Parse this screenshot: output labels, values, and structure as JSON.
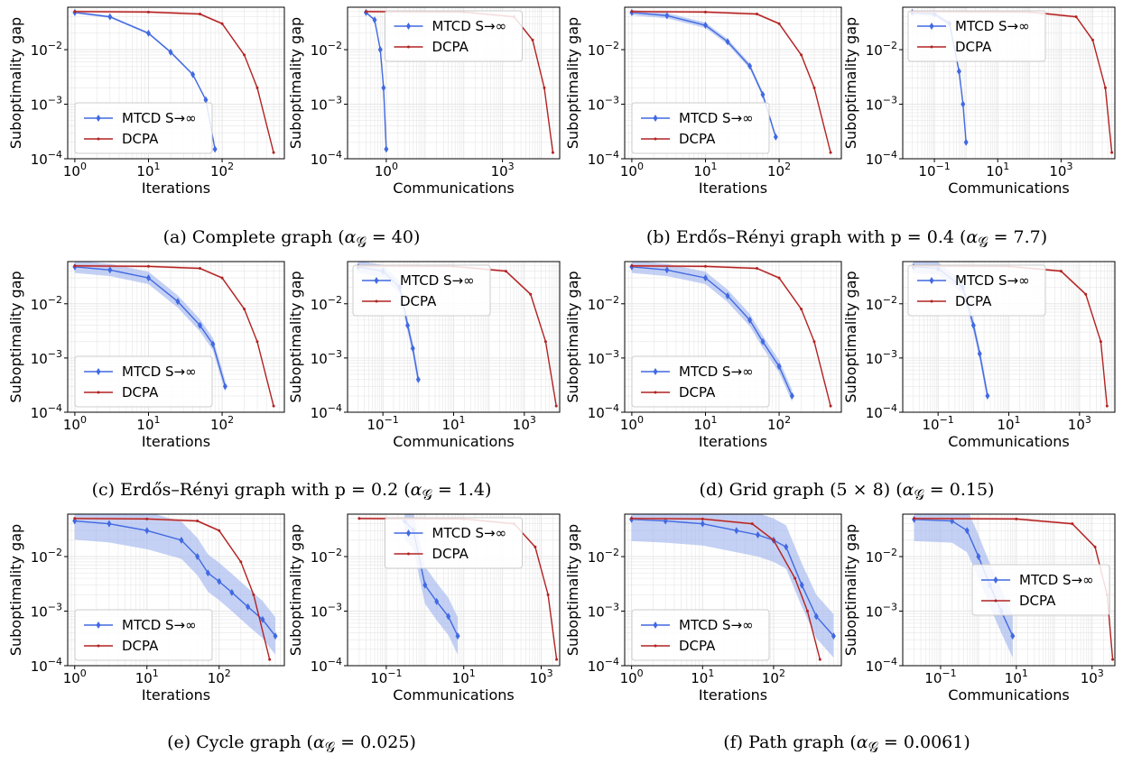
{
  "colors": {
    "mtcd": "#4169e1",
    "mtcd_band": "#9db3ee",
    "dcpa": "#b22222",
    "dcpa_band": "#e8a0a0",
    "grid": "#e6e6e6"
  },
  "legend_labels": {
    "mtcd": "MTCD S→∞",
    "dcpa": "DCPA"
  },
  "captions": [
    {
      "letter": "(a)",
      "text": "Complete graph",
      "alpha": "40"
    },
    {
      "letter": "(b)",
      "text": "Erdős–Rényi graph with p = 0.4",
      "alpha": "7.7"
    },
    {
      "letter": "(c)",
      "text": "Erdős–Rényi graph with p = 0.2",
      "alpha": "1.4"
    },
    {
      "letter": "(d)",
      "text": "Grid graph (5 × 8)",
      "alpha": "0.15"
    },
    {
      "letter": "(e)",
      "text": "Cycle graph",
      "alpha": "0.025"
    },
    {
      "letter": "(f)",
      "text": "Path graph",
      "alpha": "0.0061"
    }
  ],
  "chart_data": [
    {
      "panel": "a-left",
      "type": "line",
      "xlabel": "Iterations",
      "ylabel": "Suboptimality gap",
      "xscale": "log",
      "yscale": "log",
      "xlim": [
        0.8,
        700
      ],
      "ylim": [
        0.0001,
        0.06
      ],
      "xticks": [
        "10^0",
        "10^1",
        "10^2"
      ],
      "yticks": [
        "10^-4",
        "10^-3",
        "10^-2"
      ],
      "legend": "lower-left",
      "series": [
        {
          "name": "MTCD S→∞",
          "x": [
            1,
            3,
            10,
            20,
            40,
            60,
            80
          ],
          "y": [
            0.048,
            0.04,
            0.02,
            0.009,
            0.0035,
            0.0012,
            0.00015
          ],
          "band": 0.05
        },
        {
          "name": "DCPA",
          "x": [
            1,
            10,
            50,
            100,
            200,
            300,
            500
          ],
          "y": [
            0.05,
            0.049,
            0.045,
            0.03,
            0.008,
            0.002,
            0.00013
          ],
          "band": 0.05
        }
      ]
    },
    {
      "panel": "a-right",
      "type": "line",
      "xlabel": "Communications",
      "ylabel": "Suboptimality gap",
      "xscale": "log",
      "yscale": "log",
      "xlim": [
        0.1,
        30000
      ],
      "ylim": [
        0.0001,
        0.06
      ],
      "xticks": [
        "10^0",
        "10^3"
      ],
      "yticks": [
        "10^-4",
        "10^-3",
        "10^-2"
      ],
      "legend": "top-center",
      "series": [
        {
          "name": "MTCD S→∞",
          "x": [
            0.3,
            0.5,
            0.7,
            0.85,
            1.0
          ],
          "y": [
            0.048,
            0.035,
            0.01,
            0.002,
            0.00015
          ],
          "band": 0.05
        },
        {
          "name": "DCPA",
          "x": [
            0.3,
            100,
            2000,
            6000,
            12000,
            20000
          ],
          "y": [
            0.05,
            0.049,
            0.04,
            0.015,
            0.002,
            0.00013
          ],
          "band": 0.05
        }
      ]
    },
    {
      "panel": "b-left",
      "type": "line",
      "xlabel": "Iterations",
      "ylabel": "Suboptimality gap",
      "xscale": "log",
      "yscale": "log",
      "xlim": [
        0.8,
        700
      ],
      "ylim": [
        0.0001,
        0.06
      ],
      "xticks": [
        "10^0",
        "10^1",
        "10^2"
      ],
      "yticks": [
        "10^-4",
        "10^-3",
        "10^-2"
      ],
      "legend": "lower-left",
      "series": [
        {
          "name": "MTCD S→∞",
          "x": [
            1,
            3,
            10,
            20,
            40,
            60,
            90
          ],
          "y": [
            0.048,
            0.042,
            0.028,
            0.014,
            0.005,
            0.0015,
            0.00025
          ],
          "band": 0.12
        },
        {
          "name": "DCPA",
          "x": [
            1,
            10,
            50,
            100,
            200,
            300,
            500
          ],
          "y": [
            0.05,
            0.049,
            0.045,
            0.03,
            0.008,
            0.002,
            0.00013
          ],
          "band": 0.05
        }
      ]
    },
    {
      "panel": "b-right",
      "type": "line",
      "xlabel": "Communications",
      "ylabel": "Suboptimality gap",
      "xscale": "log",
      "yscale": "log",
      "xlim": [
        0.01,
        50000
      ],
      "ylim": [
        0.0001,
        0.06
      ],
      "xticks": [
        "10^-1",
        "10^1",
        "10^3"
      ],
      "yticks": [
        "10^-4",
        "10^-3",
        "10^-2"
      ],
      "legend": "top-left",
      "series": [
        {
          "name": "MTCD S→∞",
          "x": [
            0.02,
            0.1,
            0.3,
            0.6,
            0.8,
            1.0
          ],
          "y": [
            0.048,
            0.045,
            0.03,
            0.004,
            0.001,
            0.0002
          ],
          "band": 0.1
        },
        {
          "name": "DCPA",
          "x": [
            0.02,
            100,
            3000,
            10000,
            25000,
            40000
          ],
          "y": [
            0.05,
            0.049,
            0.04,
            0.015,
            0.002,
            0.00013
          ],
          "band": 0.05
        }
      ]
    },
    {
      "panel": "c-left",
      "type": "line",
      "xlabel": "Iterations",
      "ylabel": "Suboptimality gap",
      "xscale": "log",
      "yscale": "log",
      "xlim": [
        0.8,
        700
      ],
      "ylim": [
        0.0001,
        0.06
      ],
      "xticks": [
        "10^0",
        "10^1",
        "10^2"
      ],
      "yticks": [
        "10^-4",
        "10^-3",
        "10^-2"
      ],
      "legend": "lower-left",
      "series": [
        {
          "name": "MTCD S→∞",
          "x": [
            1,
            3,
            10,
            25,
            50,
            75,
            110
          ],
          "y": [
            0.048,
            0.042,
            0.03,
            0.011,
            0.004,
            0.0018,
            0.0003
          ],
          "band": 0.3
        },
        {
          "name": "DCPA",
          "x": [
            1,
            10,
            50,
            100,
            200,
            300,
            500
          ],
          "y": [
            0.05,
            0.049,
            0.045,
            0.03,
            0.008,
            0.002,
            0.00013
          ],
          "band": 0.05
        }
      ]
    },
    {
      "panel": "c-right",
      "type": "line",
      "xlabel": "Communications",
      "ylabel": "Suboptimality gap",
      "xscale": "log",
      "yscale": "log",
      "xlim": [
        0.01,
        10000
      ],
      "ylim": [
        0.0001,
        0.06
      ],
      "xticks": [
        "10^-1",
        "10^1",
        "10^3"
      ],
      "yticks": [
        "10^-4",
        "10^-3",
        "10^-2"
      ],
      "legend": "top-left",
      "series": [
        {
          "name": "MTCD S→∞",
          "x": [
            0.02,
            0.1,
            0.3,
            0.5,
            0.7,
            1.0
          ],
          "y": [
            0.048,
            0.04,
            0.02,
            0.004,
            0.0015,
            0.0004
          ],
          "band": 0.3
        },
        {
          "name": "DCPA",
          "x": [
            0.02,
            10,
            300,
            1500,
            4000,
            8000
          ],
          "y": [
            0.05,
            0.049,
            0.04,
            0.015,
            0.002,
            0.00013
          ],
          "band": 0.05
        }
      ]
    },
    {
      "panel": "d-left",
      "type": "line",
      "xlabel": "Iterations",
      "ylabel": "Suboptimality gap",
      "xscale": "log",
      "yscale": "log",
      "xlim": [
        0.8,
        700
      ],
      "ylim": [
        0.0001,
        0.06
      ],
      "xticks": [
        "10^0",
        "10^1",
        "10^2"
      ],
      "yticks": [
        "10^-4",
        "10^-3",
        "10^-2"
      ],
      "legend": "lower-left",
      "series": [
        {
          "name": "MTCD S→∞",
          "x": [
            1,
            3,
            10,
            20,
            40,
            60,
            100,
            150
          ],
          "y": [
            0.048,
            0.042,
            0.03,
            0.014,
            0.005,
            0.002,
            0.0007,
            0.0002
          ],
          "band": 0.3
        },
        {
          "name": "DCPA",
          "x": [
            1,
            10,
            50,
            100,
            200,
            300,
            500
          ],
          "y": [
            0.05,
            0.049,
            0.045,
            0.03,
            0.008,
            0.002,
            0.00013
          ],
          "band": 0.05
        }
      ]
    },
    {
      "panel": "d-right",
      "type": "line",
      "xlabel": "Communications",
      "ylabel": "Suboptimality gap",
      "xscale": "log",
      "yscale": "log",
      "xlim": [
        0.01,
        10000
      ],
      "ylim": [
        0.0001,
        0.06
      ],
      "xticks": [
        "10^-1",
        "10^1",
        "10^3"
      ],
      "yticks": [
        "10^-4",
        "10^-3",
        "10^-2"
      ],
      "legend": "top-left",
      "series": [
        {
          "name": "MTCD S→∞",
          "x": [
            0.02,
            0.1,
            0.5,
            1,
            1.5,
            2.5
          ],
          "y": [
            0.048,
            0.045,
            0.02,
            0.004,
            0.0012,
            0.0002
          ],
          "band": 0.3
        },
        {
          "name": "DCPA",
          "x": [
            0.02,
            10,
            300,
            1500,
            4000,
            6000
          ],
          "y": [
            0.05,
            0.049,
            0.04,
            0.015,
            0.002,
            0.00013
          ],
          "band": 0.05
        }
      ]
    },
    {
      "panel": "e-left",
      "type": "line",
      "xlabel": "Iterations",
      "ylabel": "Suboptimality gap",
      "xscale": "log",
      "yscale": "log",
      "xlim": [
        0.8,
        800
      ],
      "ylim": [
        0.0001,
        0.06
      ],
      "xticks": [
        "10^0",
        "10^1",
        "10^2"
      ],
      "yticks": [
        "10^-4",
        "10^-3",
        "10^-2"
      ],
      "legend": "lower-left",
      "series": [
        {
          "name": "MTCD S→∞",
          "x": [
            1,
            3,
            10,
            30,
            50,
            70,
            100,
            150,
            250,
            400,
            600
          ],
          "y": [
            0.045,
            0.04,
            0.03,
            0.02,
            0.01,
            0.005,
            0.0035,
            0.0022,
            0.0012,
            0.0007,
            0.00035
          ],
          "band": 1.2
        },
        {
          "name": "DCPA",
          "x": [
            1,
            10,
            50,
            100,
            200,
            300,
            500
          ],
          "y": [
            0.05,
            0.049,
            0.045,
            0.03,
            0.008,
            0.002,
            0.00013
          ],
          "band": 0.05
        }
      ]
    },
    {
      "panel": "e-right",
      "type": "line",
      "xlabel": "Communications",
      "ylabel": "Suboptimality gap",
      "xscale": "log",
      "yscale": "log",
      "xlim": [
        0.01,
        3000
      ],
      "ylim": [
        0.0001,
        0.06
      ],
      "xticks": [
        "10^-1",
        "10^1",
        "10^3"
      ],
      "yticks": [
        "10^-4",
        "10^-3",
        "10^-2"
      ],
      "legend": "top-center",
      "series": [
        {
          "name": "MTCD S→∞",
          "x": [
            0.3,
            0.5,
            1,
            2,
            4,
            7
          ],
          "y": [
            0.045,
            0.03,
            0.003,
            0.0015,
            0.0008,
            0.00035
          ],
          "band": 1.2
        },
        {
          "name": "DCPA",
          "x": [
            0.02,
            10,
            200,
            700,
            1500,
            2500
          ],
          "y": [
            0.05,
            0.049,
            0.04,
            0.015,
            0.002,
            0.00013
          ],
          "band": 0.05
        }
      ]
    },
    {
      "panel": "f-left",
      "type": "line",
      "xlabel": "Iterations",
      "ylabel": "Suboptimality gap",
      "xscale": "log",
      "yscale": "log",
      "xlim": [
        0.8,
        900
      ],
      "ylim": [
        0.0001,
        0.06
      ],
      "xticks": [
        "10^0",
        "10^1",
        "10^2"
      ],
      "yticks": [
        "10^-4",
        "10^-3",
        "10^-2"
      ],
      "legend": "lower-left",
      "series": [
        {
          "name": "MTCD S→∞",
          "x": [
            1,
            3,
            10,
            30,
            60,
            100,
            150,
            250,
            400,
            700
          ],
          "y": [
            0.048,
            0.045,
            0.04,
            0.03,
            0.025,
            0.02,
            0.015,
            0.003,
            0.0008,
            0.00035
          ],
          "band": 1.5
        },
        {
          "name": "DCPA",
          "x": [
            1,
            10,
            50,
            100,
            200,
            300,
            450
          ],
          "y": [
            0.05,
            0.049,
            0.04,
            0.02,
            0.004,
            0.001,
            0.00013
          ],
          "band": 0.05
        }
      ]
    },
    {
      "panel": "f-right",
      "type": "line",
      "xlabel": "Communications",
      "ylabel": "Suboptimality gap",
      "xscale": "log",
      "yscale": "log",
      "xlim": [
        0.01,
        4000
      ],
      "ylim": [
        0.0001,
        0.06
      ],
      "xticks": [
        "10^-1",
        "10^1",
        "10^3"
      ],
      "yticks": [
        "10^-4",
        "10^-3",
        "10^-2"
      ],
      "legend": "center-right",
      "series": [
        {
          "name": "MTCD S→∞",
          "x": [
            0.02,
            0.2,
            0.5,
            1,
            2,
            4,
            8
          ],
          "y": [
            0.048,
            0.045,
            0.03,
            0.01,
            0.003,
            0.001,
            0.00035
          ],
          "band": 1.5
        },
        {
          "name": "DCPA",
          "x": [
            0.02,
            10,
            300,
            1200,
            2500,
            3500
          ],
          "y": [
            0.05,
            0.049,
            0.04,
            0.015,
            0.002,
            0.00013
          ],
          "band": 0.05
        }
      ]
    }
  ]
}
